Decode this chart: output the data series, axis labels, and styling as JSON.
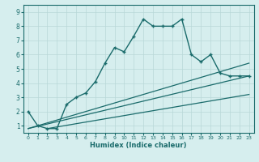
{
  "xlabel": "Humidex (Indice chaleur)",
  "bg_color": "#d6eeee",
  "line_color": "#1a6b6b",
  "grid_color": "#b8d8d8",
  "xlim": [
    -0.5,
    23.5
  ],
  "ylim": [
    0.5,
    9.5
  ],
  "xticks": [
    0,
    1,
    2,
    3,
    4,
    5,
    6,
    7,
    8,
    9,
    10,
    11,
    12,
    13,
    14,
    15,
    16,
    17,
    18,
    19,
    20,
    21,
    22,
    23
  ],
  "yticks": [
    1,
    2,
    3,
    4,
    5,
    6,
    7,
    8,
    9
  ],
  "main_line_x": [
    0,
    1,
    2,
    3,
    4,
    5,
    6,
    7,
    8,
    9,
    10,
    11,
    12,
    13,
    14,
    15,
    16,
    17,
    18,
    19,
    20,
    21,
    22,
    23
  ],
  "main_line_y": [
    2.0,
    1.0,
    0.8,
    0.8,
    2.5,
    3.0,
    3.3,
    4.1,
    5.4,
    6.5,
    6.2,
    7.3,
    8.5,
    8.0,
    8.0,
    8.0,
    8.5,
    6.0,
    5.5,
    6.0,
    4.7,
    4.5,
    4.5,
    4.5
  ],
  "line1_x": [
    0,
    23
  ],
  "line1_y": [
    0.8,
    4.5
  ],
  "line2_x": [
    0,
    23
  ],
  "line2_y": [
    0.8,
    5.4
  ],
  "line3_x": [
    2,
    23
  ],
  "line3_y": [
    0.8,
    3.2
  ]
}
